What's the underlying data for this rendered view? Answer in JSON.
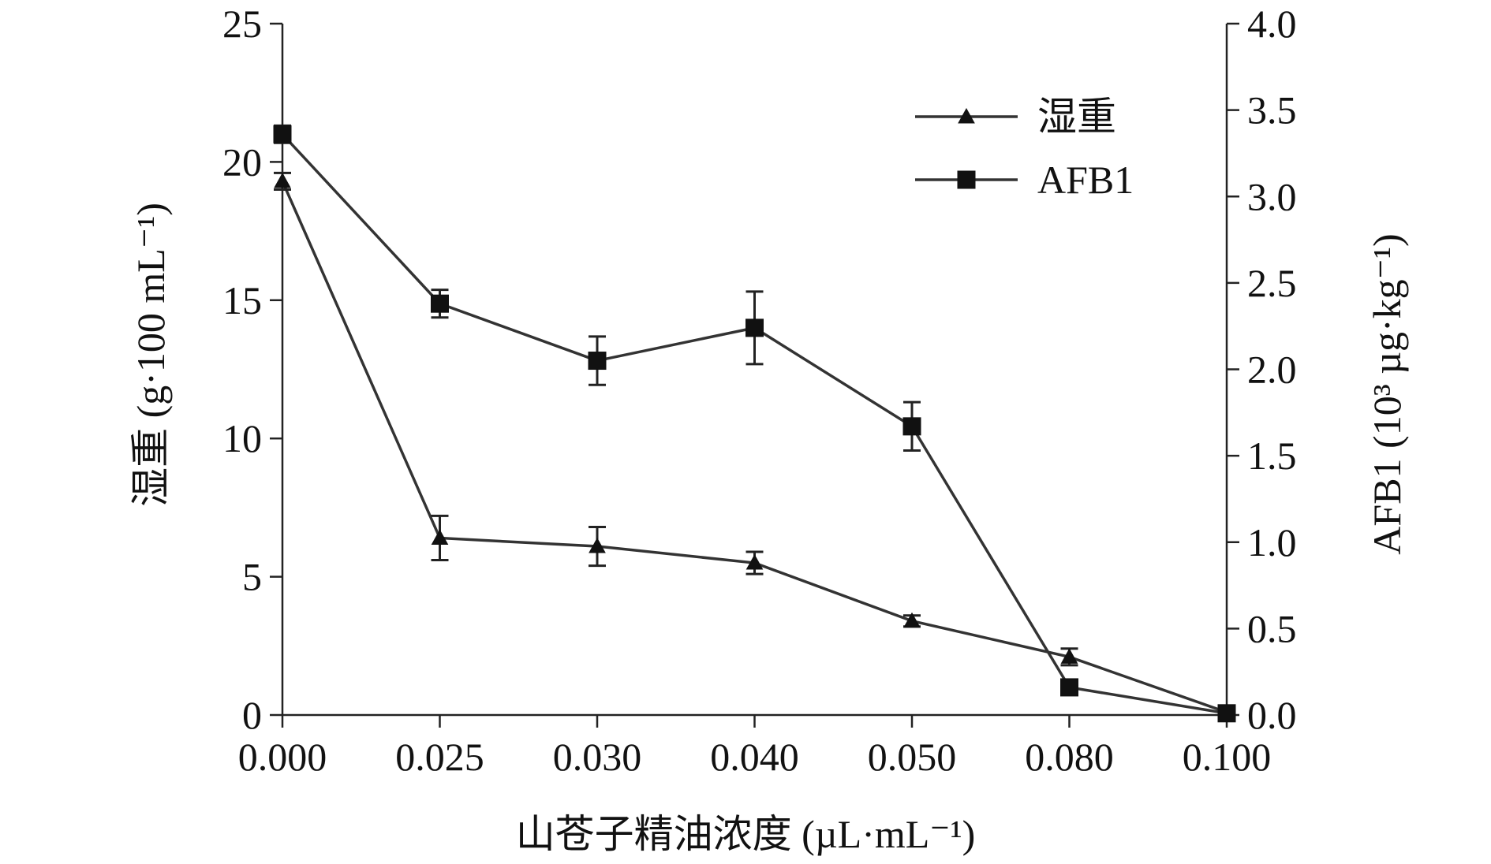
{
  "chart_data": {
    "type": "line",
    "title": "",
    "x": [
      "0.000",
      "0.025",
      "0.030",
      "0.040",
      "0.050",
      "0.080",
      "0.100"
    ],
    "xlabel": "山苍子精油浓度 (µL·mL⁻¹)",
    "ylabel_left": "湿重 (g·100 mL⁻¹)",
    "ylabel_right": "AFB1 (10³ µg·kg⁻¹)",
    "ylim_left": [
      0,
      25
    ],
    "yticks_left": [
      "0",
      "5",
      "10",
      "15",
      "20",
      "25"
    ],
    "ylim_right": [
      0,
      4.0
    ],
    "yticks_right": [
      "0.0",
      "0.5",
      "1.0",
      "1.5",
      "2.0",
      "2.5",
      "3.0",
      "3.5",
      "4.0"
    ],
    "grid": false,
    "legend_position": "top-right",
    "series": [
      {
        "name": "湿重",
        "axis": "left",
        "marker": "triangle",
        "values": [
          19.3,
          6.4,
          6.1,
          5.5,
          3.4,
          2.1,
          0.1
        ],
        "errors": [
          0.3,
          0.8,
          0.7,
          0.4,
          0.2,
          0.3,
          0.1
        ]
      },
      {
        "name": "AFB1",
        "axis": "right",
        "marker": "square",
        "values": [
          3.36,
          2.38,
          2.05,
          2.24,
          1.67,
          0.16,
          0.01
        ],
        "errors": [
          0.05,
          0.08,
          0.14,
          0.21,
          0.14,
          0.04,
          0.01
        ]
      }
    ],
    "colors": {
      "axis": "#222222",
      "line": "#333333",
      "marker": "#111111"
    }
  }
}
